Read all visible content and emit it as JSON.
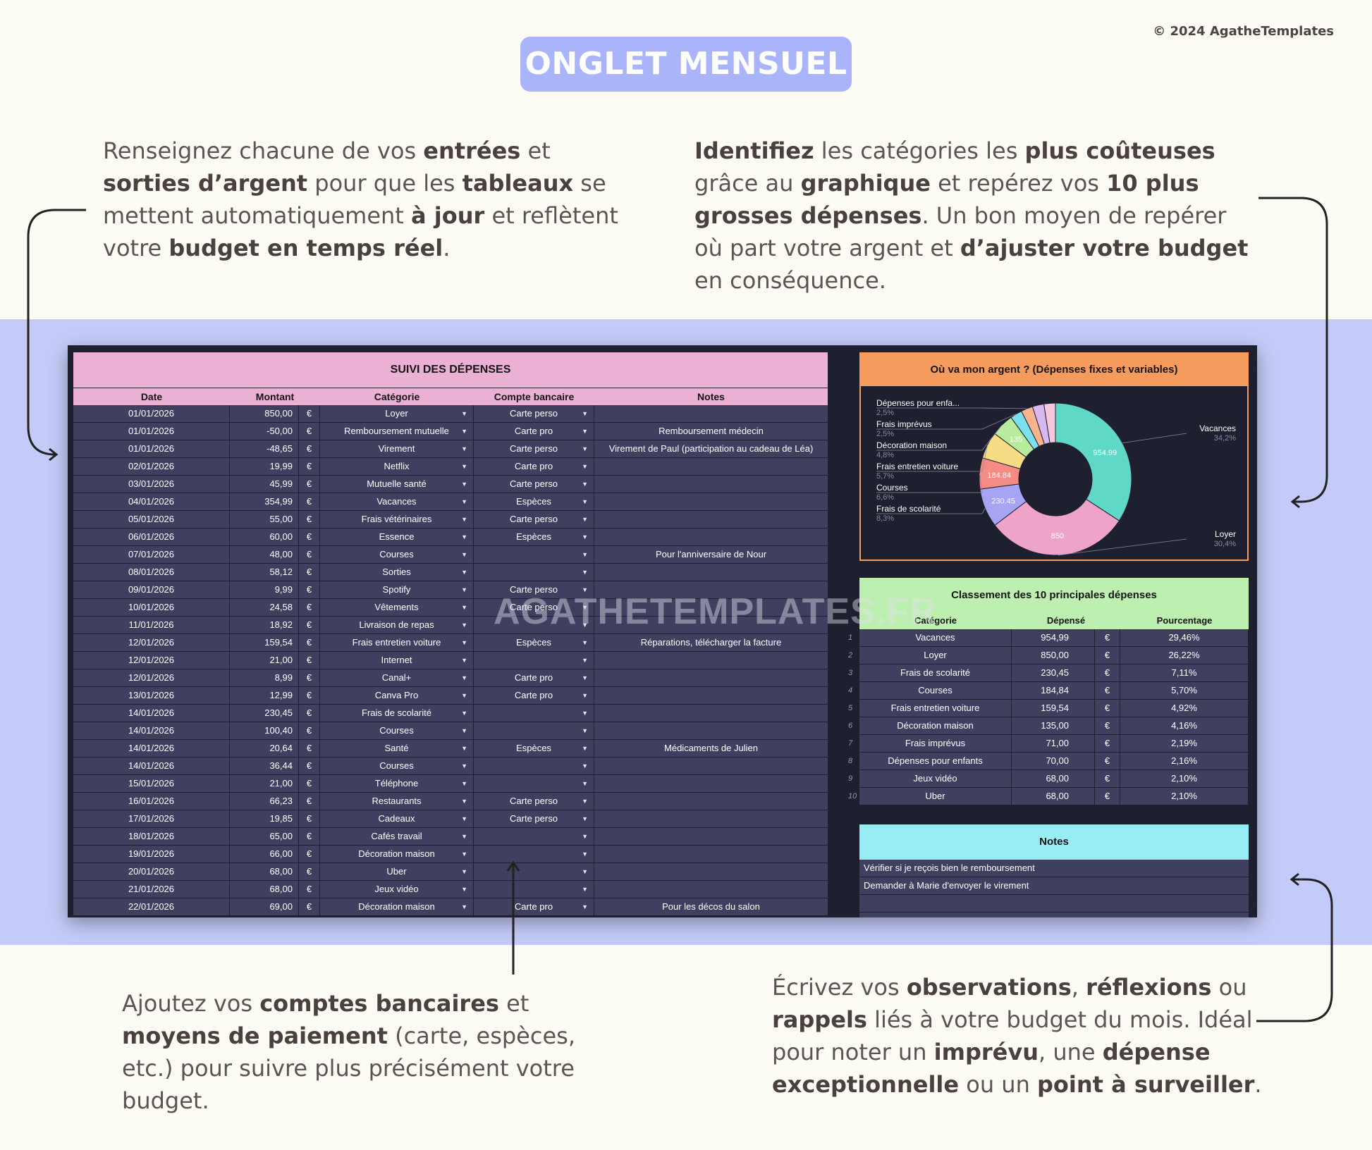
{
  "copyright": "© 2024 AgatheTemplates",
  "banner": "ONGLET MENSUEL",
  "watermark": "AGATHETEMPLATES.FR",
  "desc_top_left": [
    {
      "t": "Renseignez chacune de vos ",
      "b": false
    },
    {
      "t": "entrées",
      "b": true
    },
    {
      "t": " et ",
      "b": false
    },
    {
      "t": "sorties d’argent",
      "b": true
    },
    {
      "t": " pour que les ",
      "b": false
    },
    {
      "t": "tableaux",
      "b": true
    },
    {
      "t": " se mettent automatiquement ",
      "b": false
    },
    {
      "t": "à jour",
      "b": true
    },
    {
      "t": " et reflètent votre ",
      "b": false
    },
    {
      "t": "budget en temps réel",
      "b": true
    },
    {
      "t": ".",
      "b": false
    }
  ],
  "desc_top_right": [
    {
      "t": "Identifiez",
      "b": true
    },
    {
      "t": " les catégories les ",
      "b": false
    },
    {
      "t": "plus coûteuses",
      "b": true
    },
    {
      "t": " grâce au ",
      "b": false
    },
    {
      "t": "graphique",
      "b": true
    },
    {
      "t": " et repérez vos ",
      "b": false
    },
    {
      "t": "10 plus grosses dépenses",
      "b": true
    },
    {
      "t": ". Un bon moyen de repérer où part votre argent et ",
      "b": false
    },
    {
      "t": "d’ajuster votre budget",
      "b": true
    },
    {
      "t": " en conséquence.",
      "b": false
    }
  ],
  "desc_bottom_left": [
    {
      "t": "Ajoutez vos ",
      "b": false
    },
    {
      "t": "comptes bancaires",
      "b": true
    },
    {
      "t": " et ",
      "b": false
    },
    {
      "t": "moyens de paiement",
      "b": true
    },
    {
      "t": " (carte, espèces, etc.) pour suivre plus précisément votre budget.",
      "b": false
    }
  ],
  "desc_bottom_right": [
    {
      "t": "Écrivez vos ",
      "b": false
    },
    {
      "t": "observations",
      "b": true
    },
    {
      "t": ", ",
      "b": false
    },
    {
      "t": "réflexions",
      "b": true
    },
    {
      "t": " ou ",
      "b": false
    },
    {
      "t": "rappels",
      "b": true
    },
    {
      "t": " liés à votre budget du mois. Idéal pour noter un ",
      "b": false
    },
    {
      "t": "imprévu",
      "b": true
    },
    {
      "t": ", une ",
      "b": false
    },
    {
      "t": "dépense exceptionnelle",
      "b": true
    },
    {
      "t": " ou un ",
      "b": false
    },
    {
      "t": "point à surveiller",
      "b": true
    },
    {
      "t": ".",
      "b": false
    }
  ],
  "expenses": {
    "title": "SUIVI DES DÉPENSES",
    "headers": {
      "date": "Date",
      "amount": "Montant",
      "category": "Catégorie",
      "account": "Compte bancaire",
      "notes": "Notes"
    },
    "currency": "€",
    "rows": [
      {
        "date": "01/01/2026",
        "amount": "850,00",
        "category": "Loyer",
        "account": "Carte perso",
        "notes": ""
      },
      {
        "date": "01/01/2026",
        "amount": "-50,00",
        "category": "Remboursement mutuelle",
        "account": "Carte pro",
        "notes": "Remboursement médecin"
      },
      {
        "date": "01/01/2026",
        "amount": "-48,65",
        "category": "Virement",
        "account": "Carte perso",
        "notes": "Virement de Paul (participation au cadeau de Léa)"
      },
      {
        "date": "02/01/2026",
        "amount": "19,99",
        "category": "Netflix",
        "account": "Carte pro",
        "notes": ""
      },
      {
        "date": "03/01/2026",
        "amount": "45,99",
        "category": "Mutuelle santé",
        "account": "Carte perso",
        "notes": ""
      },
      {
        "date": "04/01/2026",
        "amount": "354,99",
        "category": "Vacances",
        "account": "Espèces",
        "notes": ""
      },
      {
        "date": "05/01/2026",
        "amount": "55,00",
        "category": "Frais vétérinaires",
        "account": "Carte perso",
        "notes": ""
      },
      {
        "date": "06/01/2026",
        "amount": "60,00",
        "category": "Essence",
        "account": "Espèces",
        "notes": ""
      },
      {
        "date": "07/01/2026",
        "amount": "48,00",
        "category": "Courses",
        "account": "",
        "notes": "Pour l'anniversaire de Nour"
      },
      {
        "date": "08/01/2026",
        "amount": "58,12",
        "category": "Sorties",
        "account": "",
        "notes": ""
      },
      {
        "date": "09/01/2026",
        "amount": "9,99",
        "category": "Spotify",
        "account": "Carte perso",
        "notes": ""
      },
      {
        "date": "10/01/2026",
        "amount": "24,58",
        "category": "Vêtements",
        "account": "Carte perso",
        "notes": ""
      },
      {
        "date": "11/01/2026",
        "amount": "18,92",
        "category": "Livraison de repas",
        "account": "",
        "notes": ""
      },
      {
        "date": "12/01/2026",
        "amount": "159,54",
        "category": "Frais entretien voiture",
        "account": "Espèces",
        "notes": "Réparations, télécharger la facture"
      },
      {
        "date": "12/01/2026",
        "amount": "21,00",
        "category": "Internet",
        "account": "",
        "notes": ""
      },
      {
        "date": "12/01/2026",
        "amount": "8,99",
        "category": "Canal+",
        "account": "Carte pro",
        "notes": ""
      },
      {
        "date": "13/01/2026",
        "amount": "12,99",
        "category": "Canva Pro",
        "account": "Carte pro",
        "notes": ""
      },
      {
        "date": "14/01/2026",
        "amount": "230,45",
        "category": "Frais de scolarité",
        "account": "",
        "notes": ""
      },
      {
        "date": "14/01/2026",
        "amount": "100,40",
        "category": "Courses",
        "account": "",
        "notes": ""
      },
      {
        "date": "14/01/2026",
        "amount": "20,64",
        "category": "Santé",
        "account": "Espèces",
        "notes": "Médicaments de Julien"
      },
      {
        "date": "14/01/2026",
        "amount": "36,44",
        "category": "Courses",
        "account": "",
        "notes": ""
      },
      {
        "date": "15/01/2026",
        "amount": "21,00",
        "category": "Téléphone",
        "account": "",
        "notes": ""
      },
      {
        "date": "16/01/2026",
        "amount": "66,23",
        "category": "Restaurants",
        "account": "Carte perso",
        "notes": ""
      },
      {
        "date": "17/01/2026",
        "amount": "19,85",
        "category": "Cadeaux",
        "account": "Carte perso",
        "notes": ""
      },
      {
        "date": "18/01/2026",
        "amount": "65,00",
        "category": "Cafés travail",
        "account": "",
        "notes": ""
      },
      {
        "date": "19/01/2026",
        "amount": "66,00",
        "category": "Décoration maison",
        "account": "",
        "notes": ""
      },
      {
        "date": "20/01/2026",
        "amount": "68,00",
        "category": "Uber",
        "account": "",
        "notes": ""
      },
      {
        "date": "21/01/2026",
        "amount": "68,00",
        "category": "Jeux vidéo",
        "account": "",
        "notes": ""
      },
      {
        "date": "22/01/2026",
        "amount": "69,00",
        "category": "Décoration maison",
        "account": "Carte pro",
        "notes": "Pour les décos du salon"
      }
    ]
  },
  "chart_data": {
    "type": "pie",
    "title": "Où va mon argent ? (Dépenses fixes et variables)",
    "donut": true,
    "slices": [
      {
        "label": "Vacances",
        "value": 954.99,
        "value_label": "954.99",
        "pct": "34,2%",
        "color": "#5fd8c8"
      },
      {
        "label": "Loyer",
        "value": 850,
        "value_label": "850",
        "pct": "30,4%",
        "color": "#eda4c8"
      },
      {
        "label": "Frais de scolarité",
        "value": 230.45,
        "value_label": "230.45",
        "pct": "8,3%",
        "color": "#a7a4f4"
      },
      {
        "label": "Courses",
        "value": 184.84,
        "value_label": "184.84",
        "pct": "6,6%",
        "color": "#f48c84"
      },
      {
        "label": "Frais entretien voiture",
        "value": 159.54,
        "value_label": "",
        "pct": "5,7%",
        "color": "#f6dc84"
      },
      {
        "label": "Décoration maison",
        "value": 135,
        "value_label": "135",
        "pct": "4,8%",
        "color": "#b8ec9c"
      },
      {
        "label": "Frais imprévus",
        "value": 71,
        "value_label": "",
        "pct": "2,5%",
        "color": "#7ce0ec"
      },
      {
        "label": "Dépenses pour enfa...",
        "value": 70,
        "value_label": "",
        "pct": "2,5%",
        "color": "#f8b48c"
      },
      {
        "label": "",
        "value": 68,
        "value_label": "",
        "pct": "",
        "color": "#d8b8f0"
      },
      {
        "label": "",
        "value": 68,
        "value_label": "",
        "pct": "",
        "color": "#f6c8dc"
      }
    ]
  },
  "top10": {
    "title": "Classement des 10 principales dépenses",
    "headers": {
      "category": "Catégorie",
      "spent": "Dépensé",
      "percent": "Pourcentage"
    },
    "currency": "€",
    "rows": [
      {
        "n": "1",
        "category": "Vacances",
        "spent": "954,99",
        "percent": "29,46%"
      },
      {
        "n": "2",
        "category": "Loyer",
        "spent": "850,00",
        "percent": "26,22%"
      },
      {
        "n": "3",
        "category": "Frais de scolarité",
        "spent": "230,45",
        "percent": "7,11%"
      },
      {
        "n": "4",
        "category": "Courses",
        "spent": "184,84",
        "percent": "5,70%"
      },
      {
        "n": "5",
        "category": "Frais entretien voiture",
        "spent": "159,54",
        "percent": "4,92%"
      },
      {
        "n": "6",
        "category": "Décoration maison",
        "spent": "135,00",
        "percent": "4,16%"
      },
      {
        "n": "7",
        "category": "Frais imprévus",
        "spent": "71,00",
        "percent": "2,19%"
      },
      {
        "n": "8",
        "category": "Dépenses pour enfants",
        "spent": "70,00",
        "percent": "2,16%"
      },
      {
        "n": "9",
        "category": "Jeux vidéo",
        "spent": "68,00",
        "percent": "2,10%"
      },
      {
        "n": "10",
        "category": "Uber",
        "spent": "68,00",
        "percent": "2,10%"
      }
    ]
  },
  "notes": {
    "title": "Notes",
    "items": [
      "Vérifier si je reçois bien le remboursement",
      "Demander à Marie d'envoyer le virement",
      "",
      ""
    ]
  }
}
